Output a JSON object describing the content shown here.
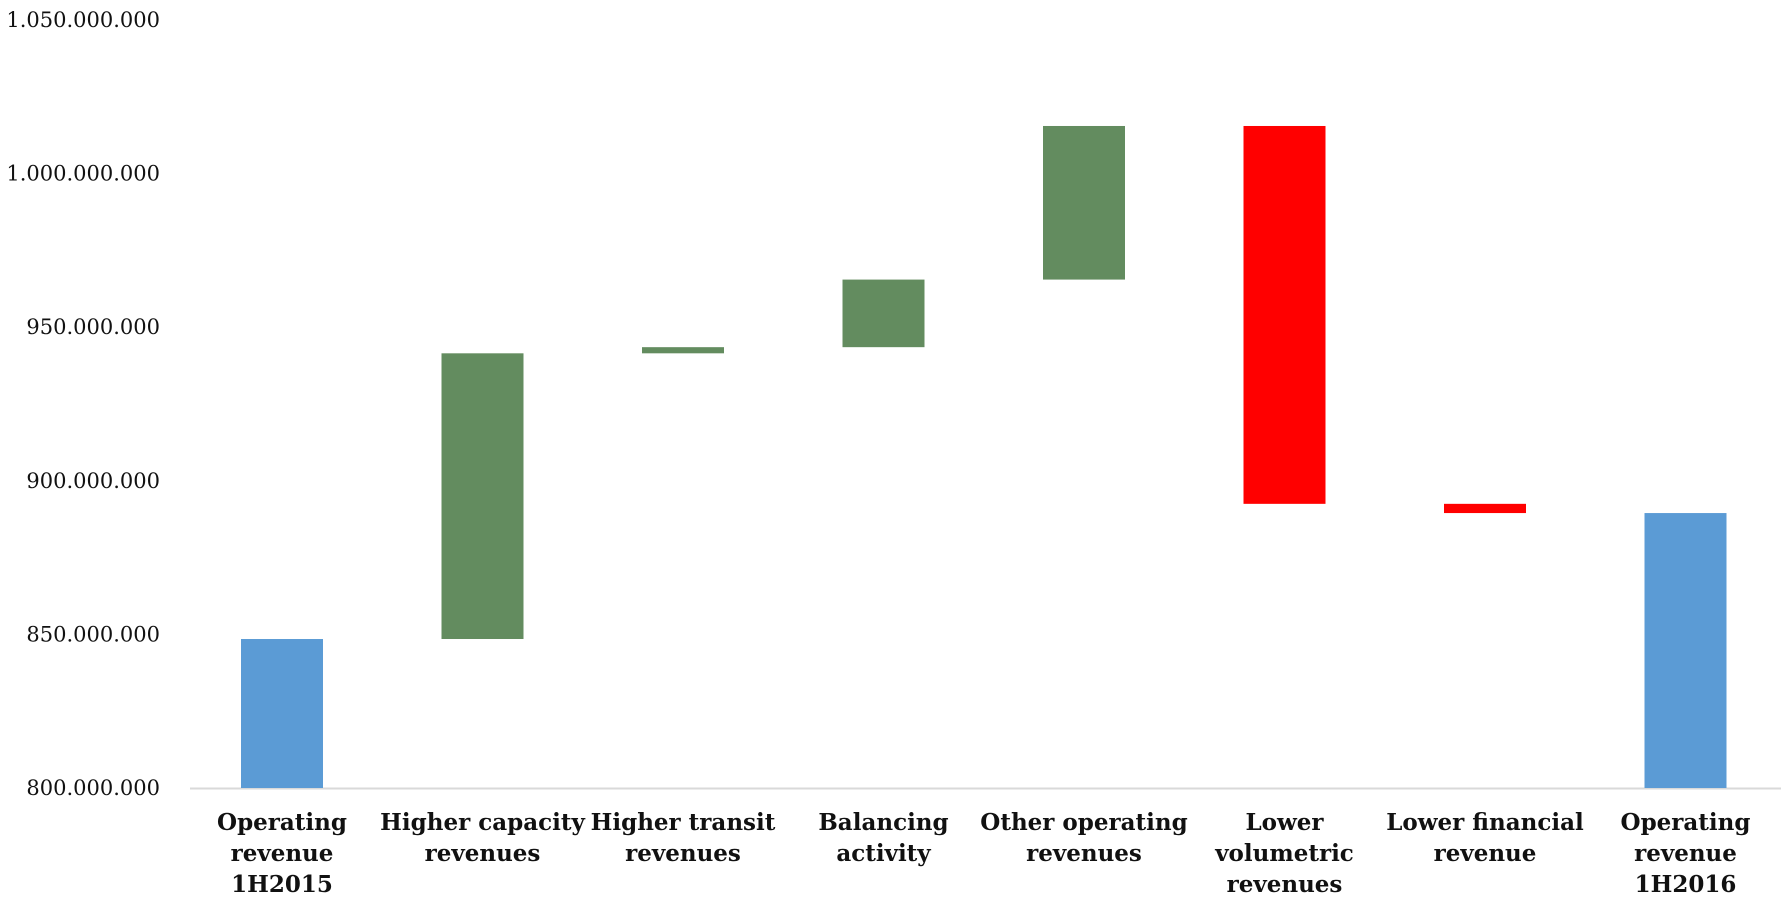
{
  "chart_data": {
    "type": "bar",
    "subtype": "waterfall",
    "title": "",
    "xlabel": "",
    "ylabel": "",
    "ylim": [
      800000000,
      1050000000
    ],
    "y_ticks": [
      800000000,
      850000000,
      900000000,
      950000000,
      1000000000,
      1050000000
    ],
    "y_tick_labels": [
      "800.000.000",
      "850.000.000",
      "900.000.000",
      "950.000.000",
      "1.000.000.000",
      "1.050.000.000"
    ],
    "grid": false,
    "legend": "none",
    "colors": {
      "total": "#5b9bd5",
      "increase": "#638c5f",
      "decrease": "#ff0000",
      "axis": "#d9d9d9"
    },
    "categories": [
      [
        "Operating",
        "revenue",
        "1H2015"
      ],
      [
        "Higher capacity",
        "revenues"
      ],
      [
        "Higher transit",
        "revenues"
      ],
      [
        "Balancing",
        "activity"
      ],
      [
        "Other operating",
        "revenues"
      ],
      [
        "Lower",
        "volumetric",
        "revenues"
      ],
      [
        "Lower financial",
        "revenue"
      ],
      [
        "Operating",
        "revenue",
        "1H2016"
      ]
    ],
    "bars": [
      {
        "kind": "total",
        "start": 800000000,
        "end": 848500000
      },
      {
        "kind": "increase",
        "start": 848500000,
        "end": 941500000
      },
      {
        "kind": "increase",
        "start": 941500000,
        "end": 943500000
      },
      {
        "kind": "increase",
        "start": 943500000,
        "end": 965500000
      },
      {
        "kind": "increase",
        "start": 965500000,
        "end": 1015500000
      },
      {
        "kind": "decrease",
        "start": 1015500000,
        "end": 892500000
      },
      {
        "kind": "decrease",
        "start": 892500000,
        "end": 889500000
      },
      {
        "kind": "total",
        "start": 800000000,
        "end": 889500000
      }
    ]
  }
}
